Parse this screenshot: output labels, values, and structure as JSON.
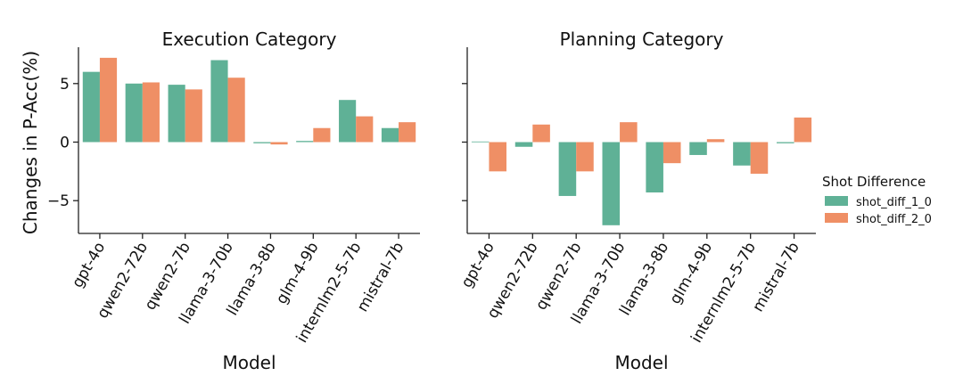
{
  "chart_data": {
    "type": "bar",
    "ylabel": "Changes in P-Acc(%)",
    "ylim": [
      -7.8,
      7.8
    ],
    "yticks": [
      -5,
      0,
      5
    ],
    "ytick_labels": [
      "−5",
      "0",
      "5"
    ],
    "categories": [
      "gpt-4o",
      "qwen2-72b",
      "qwen2-7b",
      "llama-3-70b",
      "llama-3-8b",
      "glm-4-9b",
      "internlm2-5-7b",
      "mistral-7b"
    ],
    "legend": {
      "title": "Shot Difference",
      "position": "right"
    },
    "series_colors": [
      "#5fb196",
      "#ef8f65"
    ],
    "panels": [
      {
        "title": "Execution Category",
        "xlabel": "Model",
        "series": [
          {
            "name": "shot_diff_1_0",
            "values": [
              6.0,
              5.0,
              4.9,
              7.0,
              -0.1,
              0.1,
              3.6,
              1.2
            ]
          },
          {
            "name": "shot_diff_2_0",
            "values": [
              7.2,
              5.1,
              4.5,
              5.5,
              -0.2,
              1.2,
              2.2,
              1.7
            ]
          }
        ]
      },
      {
        "title": "Planning Category",
        "xlabel": "Model",
        "series": [
          {
            "name": "shot_diff_1_0",
            "values": [
              0.05,
              -0.4,
              -4.6,
              -7.1,
              -4.3,
              -1.1,
              -2.0,
              -0.1
            ]
          },
          {
            "name": "shot_diff_2_0",
            "values": [
              -2.5,
              1.5,
              -2.5,
              1.7,
              -1.8,
              0.25,
              -2.7,
              2.1
            ]
          }
        ]
      }
    ]
  }
}
